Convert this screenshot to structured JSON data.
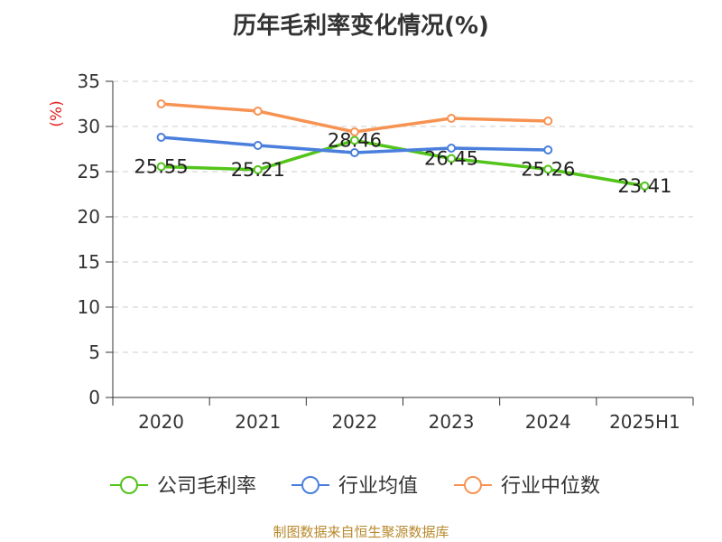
{
  "chart_data": {
    "type": "line",
    "title": "历年毛利率变化情况(%)",
    "ylabel": "(%)",
    "xlabel": "",
    "ylim": [
      0,
      35
    ],
    "yticks": [
      0,
      5,
      10,
      15,
      20,
      25,
      30,
      35
    ],
    "grid": "dashed-horizontal",
    "categories": [
      "2020",
      "2021",
      "2022",
      "2023",
      "2024",
      "2025H1"
    ],
    "series": [
      {
        "name": "公司毛利率",
        "color": "#52c41a",
        "values": [
          25.55,
          25.21,
          28.46,
          26.45,
          25.26,
          23.41
        ],
        "labels": [
          "25.55",
          "25.21",
          "28.46",
          "26.45",
          "25.26",
          "23.41"
        ]
      },
      {
        "name": "行业均值",
        "color": "#4a7fdc",
        "values": [
          28.8,
          27.9,
          27.1,
          27.6,
          27.4,
          null
        ]
      },
      {
        "name": "行业中位数",
        "color": "#f79352",
        "values": [
          32.5,
          31.7,
          29.4,
          30.9,
          30.6,
          null
        ]
      }
    ],
    "legend_position": "bottom"
  },
  "source": "制图数据来自恒生聚源数据库"
}
